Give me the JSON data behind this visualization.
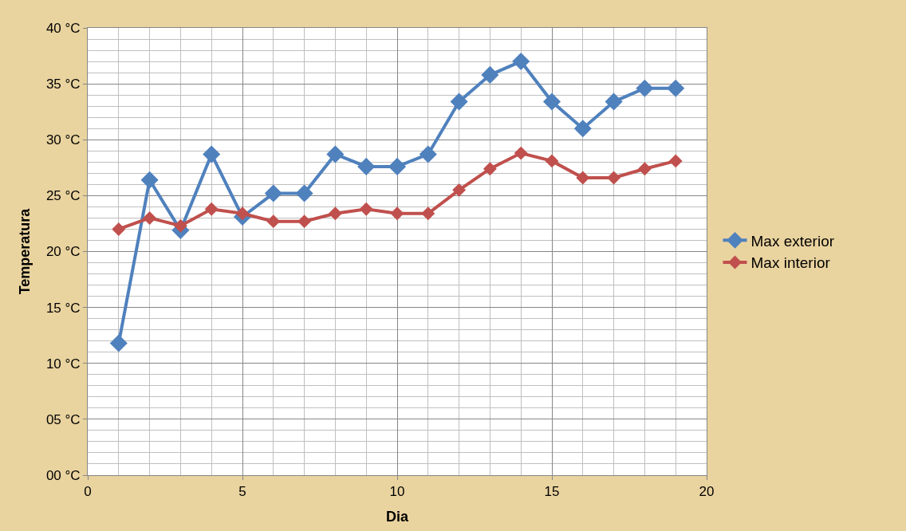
{
  "chart_data": {
    "type": "line",
    "xlabel": "Dia",
    "ylabel": "Temperatura",
    "x": [
      1,
      2,
      3,
      4,
      5,
      6,
      7,
      8,
      9,
      10,
      11,
      12,
      13,
      14,
      15,
      16,
      17,
      18,
      19
    ],
    "series": [
      {
        "name": "Max exterior",
        "color": "#4f81bd",
        "values": [
          11.8,
          26.4,
          21.9,
          28.7,
          23.1,
          25.2,
          25.2,
          28.7,
          27.6,
          27.6,
          28.7,
          33.4,
          35.8,
          37.0,
          33.4,
          31.0,
          33.4,
          34.6,
          34.6
        ]
      },
      {
        "name": "Max interior",
        "color": "#c0504d",
        "values": [
          22.0,
          23.0,
          22.3,
          23.8,
          23.4,
          22.7,
          22.7,
          23.4,
          23.8,
          23.4,
          23.4,
          25.5,
          27.4,
          28.8,
          28.1,
          26.6,
          26.6,
          27.4,
          28.1
        ]
      }
    ],
    "xlim": [
      0,
      20
    ],
    "xticks": [
      0,
      5,
      10,
      15,
      20
    ],
    "ylim": [
      0,
      40
    ],
    "yticks": [
      {
        "value": 0,
        "label": "00 °C"
      },
      {
        "value": 5,
        "label": "05 °C"
      },
      {
        "value": 10,
        "label": "10 °C"
      },
      {
        "value": 15,
        "label": "15 °C"
      },
      {
        "value": 20,
        "label": "20 °C"
      },
      {
        "value": 25,
        "label": "25 °C"
      },
      {
        "value": 30,
        "label": "30 °C"
      },
      {
        "value": 35,
        "label": "35 °C"
      },
      {
        "value": 40,
        "label": "40 °C"
      }
    ],
    "grid": true,
    "legend": "right",
    "marker": "diamond",
    "line_style": "solid"
  }
}
